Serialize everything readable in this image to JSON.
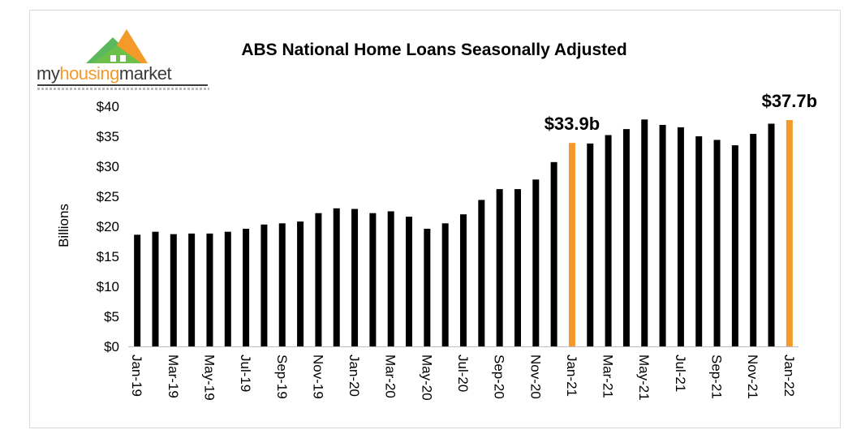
{
  "logo": {
    "text_part1": "my",
    "text_part2": "housing",
    "text_part3": "market"
  },
  "chart_data": {
    "type": "bar",
    "title": "ABS National Home Loans Seasonally Adjusted",
    "ylabel": "Billions",
    "xlabel": "",
    "ylim": [
      0,
      40
    ],
    "yticks": [
      "$0",
      "$5",
      "$10",
      "$15",
      "$20",
      "$25",
      "$30",
      "$35",
      "$40"
    ],
    "categories": [
      "Jan-19",
      "Feb-19",
      "Mar-19",
      "Apr-19",
      "May-19",
      "Jun-19",
      "Jul-19",
      "Aug-19",
      "Sep-19",
      "Oct-19",
      "Nov-19",
      "Dec-19",
      "Jan-20",
      "Feb-20",
      "Mar-20",
      "Apr-20",
      "May-20",
      "Jun-20",
      "Jul-20",
      "Aug-20",
      "Sep-20",
      "Oct-20",
      "Nov-20",
      "Dec-20",
      "Jan-21",
      "Feb-21",
      "Mar-21",
      "Apr-21",
      "May-21",
      "Jun-21",
      "Jul-21",
      "Aug-21",
      "Sep-21",
      "Oct-21",
      "Nov-21",
      "Dec-21",
      "Jan-22"
    ],
    "xtick_labels": [
      "Jan-19",
      "Mar-19",
      "May-19",
      "Jul-19",
      "Sep-19",
      "Nov-19",
      "Jan-20",
      "Mar-20",
      "May-20",
      "Jul-20",
      "Sep-20",
      "Nov-20",
      "Jan-21",
      "Mar-21",
      "May-21",
      "Jul-21",
      "Sep-21",
      "Nov-21",
      "Jan-22"
    ],
    "values": [
      18.6,
      19.1,
      18.7,
      18.8,
      18.8,
      19.1,
      19.6,
      20.3,
      20.5,
      20.8,
      22.2,
      23.0,
      22.9,
      22.2,
      22.5,
      21.6,
      19.6,
      20.5,
      22.0,
      24.4,
      26.2,
      26.2,
      27.8,
      30.7,
      33.9,
      33.8,
      35.2,
      36.2,
      37.8,
      36.9,
      36.5,
      35.0,
      34.4,
      33.5,
      35.4,
      37.1,
      37.7
    ],
    "highlighted": [
      {
        "category": "Jan-21",
        "label": "$33.9b"
      },
      {
        "category": "Jan-22",
        "label": "$37.7b"
      }
    ],
    "colors": {
      "bar": "#000000",
      "highlight": "#f39a2b"
    },
    "grid": false,
    "legend": "none"
  }
}
